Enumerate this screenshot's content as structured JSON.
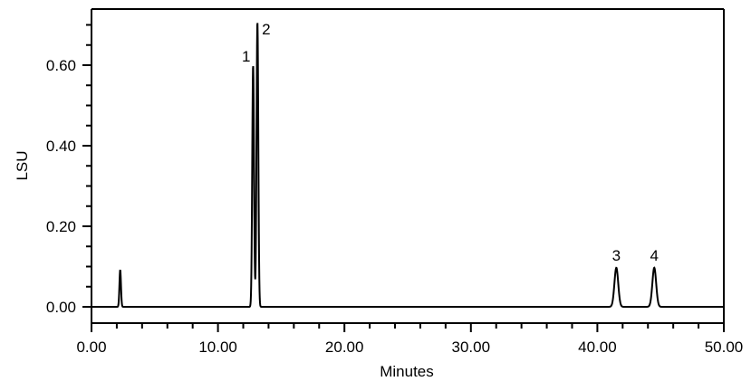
{
  "chart_data": {
    "type": "line",
    "title": "",
    "xlabel": "Minutes",
    "ylabel": "LSU",
    "xlim": [
      0,
      50
    ],
    "ylim": [
      -0.04,
      0.74
    ],
    "x_ticks": [
      "0.00",
      "10.00",
      "20.00",
      "30.00",
      "40.00",
      "50.00"
    ],
    "x_tick_values": [
      0,
      10,
      20,
      30,
      40,
      50
    ],
    "y_ticks": [
      "0.00",
      "0.20",
      "0.40",
      "0.60"
    ],
    "y_tick_values": [
      0,
      0.2,
      0.4,
      0.6
    ],
    "x_minor_step": 2,
    "y_minor_step": 0.05,
    "grid": false,
    "baseline": 0.0,
    "peaks": [
      {
        "label": "",
        "time": 2.27,
        "height": 0.092,
        "width": 0.06
      },
      {
        "label": "1",
        "time": 12.78,
        "height": 0.6,
        "width": 0.07
      },
      {
        "label": "2",
        "time": 13.12,
        "height": 0.708,
        "width": 0.07
      },
      {
        "label": "3",
        "time": 41.5,
        "height": 0.097,
        "width": 0.15
      },
      {
        "label": "4",
        "time": 44.5,
        "height": 0.097,
        "width": 0.15
      }
    ],
    "line_color": "#000000"
  }
}
